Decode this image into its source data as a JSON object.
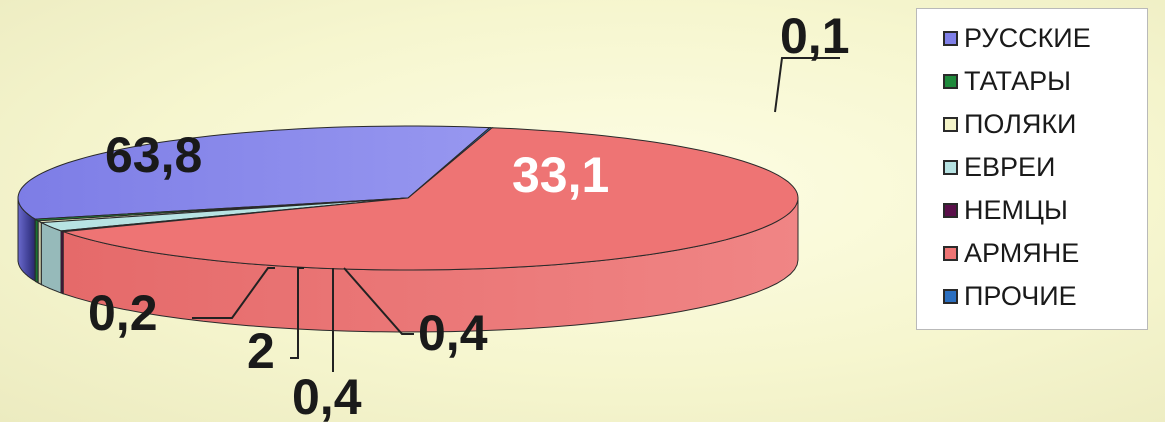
{
  "chart_data": {
    "type": "pie",
    "categories": [
      "РУССКИЕ",
      "ТАТАРЫ",
      "ПОЛЯКИ",
      "ЕВРЕИ",
      "НЕМЦЫ",
      "АРМЯНЕ",
      "ПРОЧИЕ"
    ],
    "values": [
      33.1,
      0.4,
      0.4,
      2,
      0.2,
      63.8,
      0.1
    ],
    "value_labels": [
      "33,1",
      "0,4",
      "0,4",
      "2",
      "0,2",
      "63,8",
      "0,1"
    ],
    "colors": [
      "#8080e8",
      "#1f8a3c",
      "#f3f3c8",
      "#b7e3e3",
      "#5a0f4a",
      "#ee7474",
      "#2b6fc0"
    ],
    "style": "3d",
    "legend": "right"
  }
}
